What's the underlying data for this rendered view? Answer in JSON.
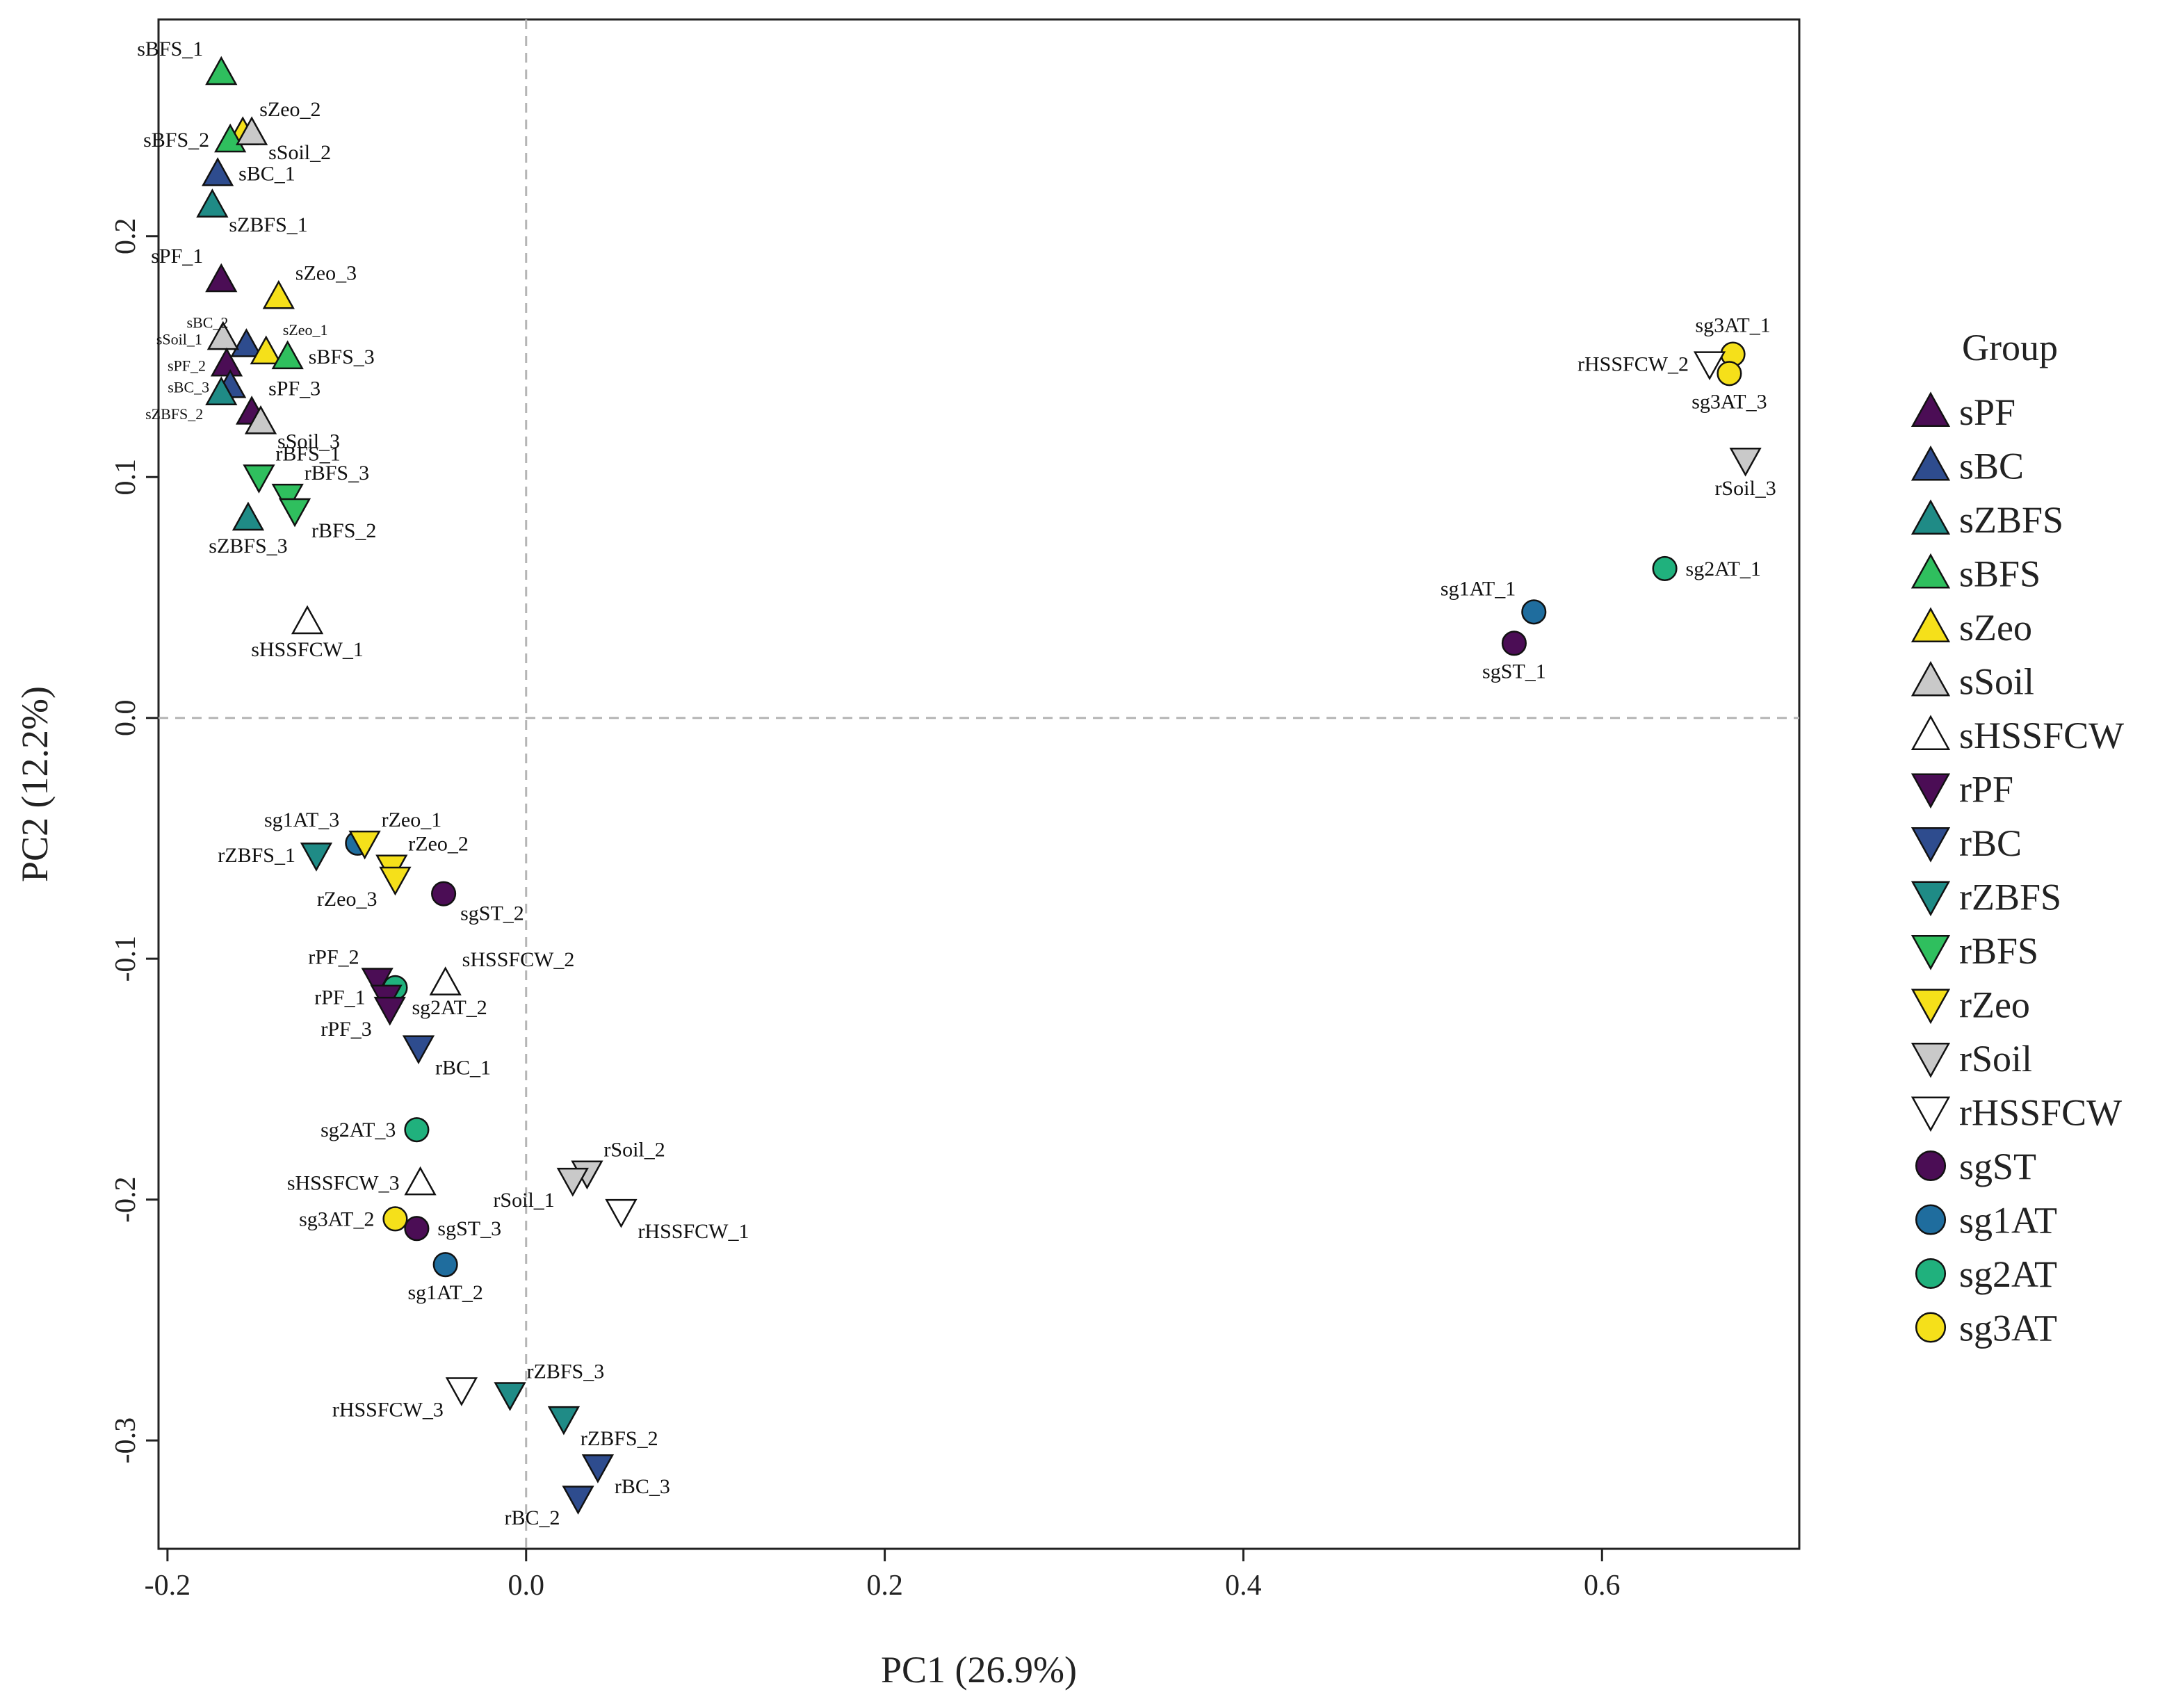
{
  "chart_data": {
    "type": "scatter",
    "title": "",
    "xlabel": "PC1 (26.9%)",
    "ylabel": "PC2 (12.2%)",
    "xlim": [
      -0.205,
      0.71
    ],
    "ylim": [
      -0.345,
      0.29
    ],
    "xticks": [
      -0.2,
      0.0,
      0.2,
      0.4,
      0.6
    ],
    "xtick_labels": [
      "-0.2",
      "0.0",
      "0.2",
      "0.4",
      "0.6"
    ],
    "yticks": [
      -0.3,
      -0.2,
      -0.1,
      0.0,
      0.1,
      0.2
    ],
    "ytick_labels": [
      "-0.3",
      "-0.2",
      "-0.1",
      "0.0",
      "0.1",
      "0.2"
    ],
    "reference_lines": {
      "x": 0,
      "y": 0
    },
    "grid": false,
    "legend": {
      "title": "Group",
      "placement": "right",
      "entries": [
        {
          "name": "sPF",
          "shape": "triangle-up",
          "color": "#4B0D55"
        },
        {
          "name": "sBC",
          "shape": "triangle-up",
          "color": "#2E4C8E"
        },
        {
          "name": "sZBFS",
          "shape": "triangle-up",
          "color": "#1F8B86"
        },
        {
          "name": "sBFS",
          "shape": "triangle-up",
          "color": "#2FBF5E"
        },
        {
          "name": "sZeo",
          "shape": "triangle-up",
          "color": "#F5E01A"
        },
        {
          "name": "sSoil",
          "shape": "triangle-up",
          "color": "#C9C9C9"
        },
        {
          "name": "sHSSFCW",
          "shape": "triangle-up",
          "color": "#FFFFFF"
        },
        {
          "name": "rPF",
          "shape": "triangle-down",
          "color": "#4B0D55"
        },
        {
          "name": "rBC",
          "shape": "triangle-down",
          "color": "#2E4C8E"
        },
        {
          "name": "rZBFS",
          "shape": "triangle-down",
          "color": "#1F8B86"
        },
        {
          "name": "rBFS",
          "shape": "triangle-down",
          "color": "#2FBF5E"
        },
        {
          "name": "rZeo",
          "shape": "triangle-down",
          "color": "#F5E01A"
        },
        {
          "name": "rSoil",
          "shape": "triangle-down",
          "color": "#C9C9C9"
        },
        {
          "name": "rHSSFCW",
          "shape": "triangle-down",
          "color": "#FFFFFF"
        },
        {
          "name": "sgST",
          "shape": "circle",
          "color": "#4B0D55"
        },
        {
          "name": "sg1AT",
          "shape": "circle",
          "color": "#1F6D9E"
        },
        {
          "name": "sg2AT",
          "shape": "circle",
          "color": "#20B17D"
        },
        {
          "name": "sg3AT",
          "shape": "circle",
          "color": "#F5E01A"
        }
      ]
    },
    "points": [
      {
        "label": "sBFS_1",
        "group": "sBFS",
        "x": -0.17,
        "y": 0.268,
        "anchor": "tl"
      },
      {
        "label": "sZeo_2",
        "group": "sZeo",
        "x": -0.158,
        "y": 0.243,
        "anchor": "tr"
      },
      {
        "label": "sBFS_2",
        "group": "sBFS",
        "x": -0.165,
        "y": 0.24,
        "anchor": "l"
      },
      {
        "label": "sSoil_2",
        "group": "sSoil",
        "x": -0.153,
        "y": 0.243,
        "anchor": "br"
      },
      {
        "label": "sBC_1",
        "group": "sBC",
        "x": -0.172,
        "y": 0.226,
        "anchor": "r"
      },
      {
        "label": "sZBFS_1",
        "group": "sZBFS",
        "x": -0.175,
        "y": 0.213,
        "anchor": "br"
      },
      {
        "label": "sPF_1",
        "group": "sPF",
        "x": -0.17,
        "y": 0.182,
        "anchor": "tl"
      },
      {
        "label": "sZeo_3",
        "group": "sZeo",
        "x": -0.138,
        "y": 0.175,
        "anchor": "tr"
      },
      {
        "label": "sBC_2",
        "group": "sBC",
        "x": -0.156,
        "y": 0.155,
        "anchor": "tl",
        "small": true
      },
      {
        "label": "sSoil_1",
        "group": "sSoil",
        "x": -0.169,
        "y": 0.158,
        "anchor": "l",
        "small": true
      },
      {
        "label": "sZeo_1",
        "group": "sZeo",
        "x": -0.145,
        "y": 0.152,
        "anchor": "tr",
        "small": true
      },
      {
        "label": "sBFS_3",
        "group": "sBFS",
        "x": -0.133,
        "y": 0.15,
        "anchor": "r"
      },
      {
        "label": "sPF_2",
        "group": "sPF",
        "x": -0.167,
        "y": 0.147,
        "anchor": "l",
        "small": true
      },
      {
        "label": "sBC_3",
        "group": "sBC",
        "x": -0.165,
        "y": 0.138,
        "anchor": "l",
        "small": true
      },
      {
        "label": "sZBFS_2",
        "group": "sZBFS",
        "x": -0.17,
        "y": 0.135,
        "anchor": "bl",
        "small": true
      },
      {
        "label": "sPF_3",
        "group": "sPF",
        "x": -0.153,
        "y": 0.127,
        "anchor": "tr"
      },
      {
        "label": "sSoil_3",
        "group": "sSoil",
        "x": -0.148,
        "y": 0.123,
        "anchor": "br"
      },
      {
        "label": "rBFS_1",
        "group": "rBFS",
        "x": -0.149,
        "y": 0.1,
        "anchor": "tr"
      },
      {
        "label": "rBFS_3",
        "group": "rBFS",
        "x": -0.133,
        "y": 0.092,
        "anchor": "tr"
      },
      {
        "label": "rBFS_2",
        "group": "rBFS",
        "x": -0.129,
        "y": 0.086,
        "anchor": "br"
      },
      {
        "label": "sZBFS_3",
        "group": "sZBFS",
        "x": -0.155,
        "y": 0.083,
        "anchor": "b"
      },
      {
        "label": "sHSSFCW_1",
        "group": "sHSSFCW",
        "x": -0.122,
        "y": 0.04,
        "anchor": "b"
      },
      {
        "label": "sg3AT_1",
        "group": "sg3AT",
        "x": 0.673,
        "y": 0.151,
        "anchor": "t"
      },
      {
        "label": "rHSSFCW_2",
        "group": "rHSSFCW",
        "x": 0.66,
        "y": 0.147,
        "anchor": "l"
      },
      {
        "label": "sg3AT_3",
        "group": "sg3AT",
        "x": 0.671,
        "y": 0.143,
        "anchor": "b"
      },
      {
        "label": "rSoil_3",
        "group": "rSoil",
        "x": 0.68,
        "y": 0.107,
        "anchor": "b"
      },
      {
        "label": "sg2AT_1",
        "group": "sg2AT",
        "x": 0.635,
        "y": 0.062,
        "anchor": "r"
      },
      {
        "label": "sg1AT_1",
        "group": "sg1AT",
        "x": 0.562,
        "y": 0.044,
        "anchor": "tl"
      },
      {
        "label": "sgST_1",
        "group": "sgST",
        "x": 0.551,
        "y": 0.031,
        "anchor": "b"
      },
      {
        "label": "sg1AT_3",
        "group": "sg1AT",
        "x": -0.094,
        "y": -0.052,
        "anchor": "tl"
      },
      {
        "label": "rZeo_1",
        "group": "rZeo",
        "x": -0.09,
        "y": -0.052,
        "anchor": "tr"
      },
      {
        "label": "rZBFS_1",
        "group": "rZBFS",
        "x": -0.117,
        "y": -0.057,
        "anchor": "l"
      },
      {
        "label": "rZeo_2",
        "group": "rZeo",
        "x": -0.075,
        "y": -0.062,
        "anchor": "tr"
      },
      {
        "label": "rZeo_3",
        "group": "rZeo",
        "x": -0.073,
        "y": -0.067,
        "anchor": "bl"
      },
      {
        "label": "sgST_2",
        "group": "sgST",
        "x": -0.046,
        "y": -0.073,
        "anchor": "br"
      },
      {
        "label": "rPF_2",
        "group": "rPF",
        "x": -0.083,
        "y": -0.109,
        "anchor": "tl"
      },
      {
        "label": "sHSSFCW_2",
        "group": "sHSSFCW",
        "x": -0.045,
        "y": -0.11,
        "anchor": "tr"
      },
      {
        "label": "sg2AT_2",
        "group": "sg2AT",
        "x": -0.073,
        "y": -0.112,
        "anchor": "br"
      },
      {
        "label": "rPF_1",
        "group": "rPF",
        "x": -0.078,
        "y": -0.116,
        "anchor": "l"
      },
      {
        "label": "rPF_3",
        "group": "rPF",
        "x": -0.076,
        "y": -0.121,
        "anchor": "bl"
      },
      {
        "label": "rBC_1",
        "group": "rBC",
        "x": -0.06,
        "y": -0.137,
        "anchor": "br"
      },
      {
        "label": "sg2AT_3",
        "group": "sg2AT",
        "x": -0.061,
        "y": -0.171,
        "anchor": "l"
      },
      {
        "label": "rSoil_2",
        "group": "rSoil",
        "x": 0.034,
        "y": -0.189,
        "anchor": "tr"
      },
      {
        "label": "sHSSFCW_3",
        "group": "sHSSFCW",
        "x": -0.059,
        "y": -0.193,
        "anchor": "l"
      },
      {
        "label": "rSoil_1",
        "group": "rSoil",
        "x": 0.026,
        "y": -0.192,
        "anchor": "bl"
      },
      {
        "label": "rHSSFCW_1",
        "group": "rHSSFCW",
        "x": 0.053,
        "y": -0.205,
        "anchor": "br"
      },
      {
        "label": "sg3AT_2",
        "group": "sg3AT",
        "x": -0.073,
        "y": -0.208,
        "anchor": "l"
      },
      {
        "label": "sgST_3",
        "group": "sgST",
        "x": -0.061,
        "y": -0.212,
        "anchor": "r"
      },
      {
        "label": "sg1AT_2",
        "group": "sg1AT",
        "x": -0.045,
        "y": -0.227,
        "anchor": "b"
      },
      {
        "label": "rHSSFCW_3",
        "group": "rHSSFCW",
        "x": -0.036,
        "y": -0.279,
        "anchor": "bl"
      },
      {
        "label": "rZBFS_3",
        "group": "rZBFS",
        "x": -0.009,
        "y": -0.281,
        "anchor": "tr"
      },
      {
        "label": "rZBFS_2",
        "group": "rZBFS",
        "x": 0.021,
        "y": -0.291,
        "anchor": "br"
      },
      {
        "label": "rBC_3",
        "group": "rBC",
        "x": 0.04,
        "y": -0.311,
        "anchor": "br"
      },
      {
        "label": "rBC_2",
        "group": "rBC",
        "x": 0.029,
        "y": -0.324,
        "anchor": "bl"
      }
    ]
  }
}
